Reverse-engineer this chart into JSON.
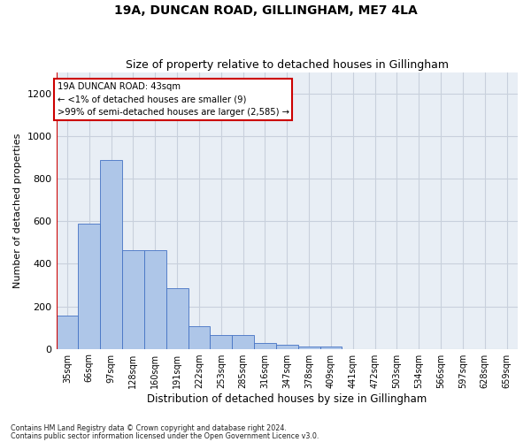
{
  "title1": "19A, DUNCAN ROAD, GILLINGHAM, ME7 4LA",
  "title2": "Size of property relative to detached houses in Gillingham",
  "xlabel": "Distribution of detached houses by size in Gillingham",
  "ylabel": "Number of detached properties",
  "categories": [
    "35sqm",
    "66sqm",
    "97sqm",
    "128sqm",
    "160sqm",
    "191sqm",
    "222sqm",
    "253sqm",
    "285sqm",
    "316sqm",
    "347sqm",
    "378sqm",
    "409sqm",
    "441sqm",
    "472sqm",
    "503sqm",
    "534sqm",
    "566sqm",
    "597sqm",
    "628sqm",
    "659sqm"
  ],
  "values": [
    155,
    590,
    890,
    465,
    465,
    285,
    105,
    63,
    63,
    27,
    20,
    12,
    10,
    0,
    0,
    0,
    0,
    0,
    0,
    0,
    0
  ],
  "bar_color": "#aec6e8",
  "bar_edge_color": "#4472c4",
  "highlight_color": "#cc0000",
  "annotation_line1": "19A DUNCAN ROAD: 43sqm",
  "annotation_line2": "← <1% of detached houses are smaller (9)",
  "annotation_line3": ">99% of semi-detached houses are larger (2,585) →",
  "ylim": [
    0,
    1300
  ],
  "yticks": [
    0,
    200,
    400,
    600,
    800,
    1000,
    1200
  ],
  "grid_color": "#c8d0dc",
  "background_color": "#e8eef5",
  "footer1": "Contains HM Land Registry data © Crown copyright and database right 2024.",
  "footer2": "Contains public sector information licensed under the Open Government Licence v3.0."
}
